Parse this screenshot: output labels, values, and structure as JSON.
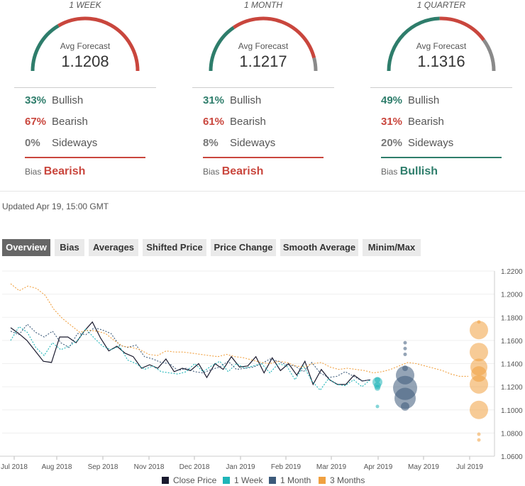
{
  "forecasts": [
    {
      "period": "1 WEEK",
      "avg_label": "Avg Forecast",
      "avg_value": "1.1208",
      "bullish_pct": "33%",
      "bearish_pct": "67%",
      "sideways_pct": "0%",
      "bullish_label": "Bullish",
      "bearish_label": "Bearish",
      "sideways_label": "Sideways",
      "bias_label": "Bias",
      "bias_value": "Bearish",
      "bias_color": "#c9463d"
    },
    {
      "period": "1 MONTH",
      "avg_label": "Avg Forecast",
      "avg_value": "1.1217",
      "bullish_pct": "31%",
      "bearish_pct": "61%",
      "sideways_pct": "8%",
      "bullish_label": "Bullish",
      "bearish_label": "Bearish",
      "sideways_label": "Sideways",
      "bias_label": "Bias",
      "bias_value": "Bearish",
      "bias_color": "#c9463d"
    },
    {
      "period": "1 QUARTER",
      "avg_label": "Avg Forecast",
      "avg_value": "1.1316",
      "bullish_pct": "49%",
      "bearish_pct": "31%",
      "sideways_pct": "20%",
      "bullish_label": "Bullish",
      "bearish_label": "Bearish",
      "sideways_label": "Sideways",
      "bias_label": "Bias",
      "bias_value": "Bullish",
      "bias_color": "#2e7d6b"
    }
  ],
  "gauge_shares": [
    {
      "bullish": 0.33,
      "bearish": 0.67,
      "sideways": 0.0
    },
    {
      "bullish": 0.31,
      "bearish": 0.61,
      "sideways": 0.08
    },
    {
      "bullish": 0.49,
      "bearish": 0.31,
      "sideways": 0.2
    }
  ],
  "colors": {
    "bullish": "#2e7d6b",
    "bearish": "#c9463d",
    "sideways": "#8a8a8a",
    "close": "#1a1a2e",
    "week": "#1fb5b8",
    "month": "#3c5a7a",
    "quarter": "#f0a040"
  },
  "updated": "Updated Apr 19, 15:00 GMT",
  "tabs": [
    "Overview",
    "Bias",
    "Averages",
    "Shifted Price",
    "Price Change",
    "Smooth Average",
    "Minim/Max"
  ],
  "active_tab": "Overview",
  "legend": [
    "Close Price",
    "1 Week",
    "1 Month",
    "3 Months"
  ],
  "chart_data": {
    "type": "line",
    "x_ticks": [
      "Jul 2018",
      "Aug 2018",
      "Sep 2018",
      "Nov 2018",
      "Dec 2018",
      "Jan 2019",
      "Feb 2019",
      "Mar 2019",
      "Apr 2019",
      "May 2019",
      "Jul 2019"
    ],
    "y_ticks": [
      "1.2200",
      "1.2000",
      "1.1800",
      "1.1600",
      "1.1400",
      "1.1200",
      "1.1000",
      "1.0800",
      "1.0600"
    ],
    "ylim": [
      1.06,
      1.22
    ],
    "series": [
      {
        "name": "Close Price",
        "values": [
          1.171,
          1.166,
          1.16,
          1.151,
          1.142,
          1.141,
          1.163,
          1.163,
          1.158,
          1.168,
          1.176,
          1.162,
          1.151,
          1.155,
          1.149,
          1.146,
          1.136,
          1.139,
          1.136,
          1.144,
          1.133,
          1.136,
          1.134,
          1.14,
          1.128,
          1.14,
          1.135,
          1.146,
          1.137,
          1.138,
          1.146,
          1.132,
          1.145,
          1.134,
          1.14,
          1.13,
          1.142,
          1.122,
          1.135,
          1.126,
          1.122,
          1.122,
          1.13,
          1.125,
          1.126
        ]
      },
      {
        "name": "1 Week",
        "values": [
          1.16,
          1.172,
          1.167,
          1.154,
          1.147,
          1.158,
          1.152,
          1.155,
          1.16,
          1.17,
          1.162,
          1.155,
          1.152,
          1.155,
          1.143,
          1.14,
          1.135,
          1.138,
          1.133,
          1.132,
          1.131,
          1.133,
          1.14,
          1.133,
          1.138,
          1.142,
          1.133,
          1.14,
          1.136,
          1.138,
          1.14,
          1.132,
          1.14,
          1.138,
          1.126,
          1.138,
          1.125,
          1.117,
          1.127,
          1.122,
          1.121,
          1.126,
          1.12,
          1.126
        ]
      },
      {
        "name": "1 Month",
        "values": [
          1.168,
          1.165,
          1.174,
          1.167,
          1.163,
          1.168,
          1.158,
          1.154,
          1.166,
          1.165,
          1.171,
          1.169,
          1.166,
          1.156,
          1.154,
          1.156,
          1.146,
          1.144,
          1.141,
          1.14,
          1.134,
          1.136,
          1.133,
          1.132,
          1.135,
          1.137,
          1.142,
          1.135,
          1.136,
          1.137,
          1.14,
          1.144,
          1.142,
          1.139,
          1.138,
          1.133,
          1.141,
          1.132,
          1.128,
          1.129,
          1.133,
          1.129,
          1.125,
          1.126
        ]
      },
      {
        "name": "3 Months",
        "values": [
          1.209,
          1.203,
          1.207,
          1.205,
          1.199,
          1.187,
          1.179,
          1.173,
          1.167,
          1.169,
          1.168,
          1.166,
          1.16,
          1.155,
          1.154,
          1.152,
          1.148,
          1.147,
          1.151,
          1.15,
          1.15,
          1.149,
          1.148,
          1.147,
          1.146,
          1.148,
          1.146,
          1.145,
          1.143,
          1.141,
          1.14,
          1.142,
          1.141,
          1.138,
          1.137,
          1.14,
          1.141,
          1.137,
          1.135,
          1.136,
          1.135,
          1.134,
          1.132,
          1.133,
          1.135,
          1.138,
          1.141,
          1.14,
          1.138,
          1.136,
          1.134,
          1.131,
          1.129,
          1.129
        ]
      }
    ],
    "bubbles_1_week": [
      {
        "y": 1.124,
        "r": 7
      },
      {
        "y": 1.121,
        "r": 5
      },
      {
        "y": 1.119,
        "r": 4
      },
      {
        "y": 1.126,
        "r": 4
      },
      {
        "y": 1.103,
        "r": 2.5
      }
    ],
    "bubbles_1_month": [
      {
        "y": 1.158,
        "r": 2.5
      },
      {
        "y": 1.153,
        "r": 2.5
      },
      {
        "y": 1.148,
        "r": 2.5
      },
      {
        "y": 1.136,
        "r": 4
      },
      {
        "y": 1.13,
        "r": 13
      },
      {
        "y": 1.119,
        "r": 17
      },
      {
        "y": 1.11,
        "r": 15
      },
      {
        "y": 1.103,
        "r": 6
      }
    ],
    "bubbles_3_months": [
      {
        "y": 1.176,
        "r": 2.5
      },
      {
        "y": 1.169,
        "r": 13
      },
      {
        "y": 1.15,
        "r": 13
      },
      {
        "y": 1.137,
        "r": 12
      },
      {
        "y": 1.131,
        "r": 11
      },
      {
        "y": 1.122,
        "r": 13
      },
      {
        "y": 1.1,
        "r": 13
      },
      {
        "y": 1.079,
        "r": 2.5
      },
      {
        "y": 1.074,
        "r": 2.5
      }
    ]
  }
}
